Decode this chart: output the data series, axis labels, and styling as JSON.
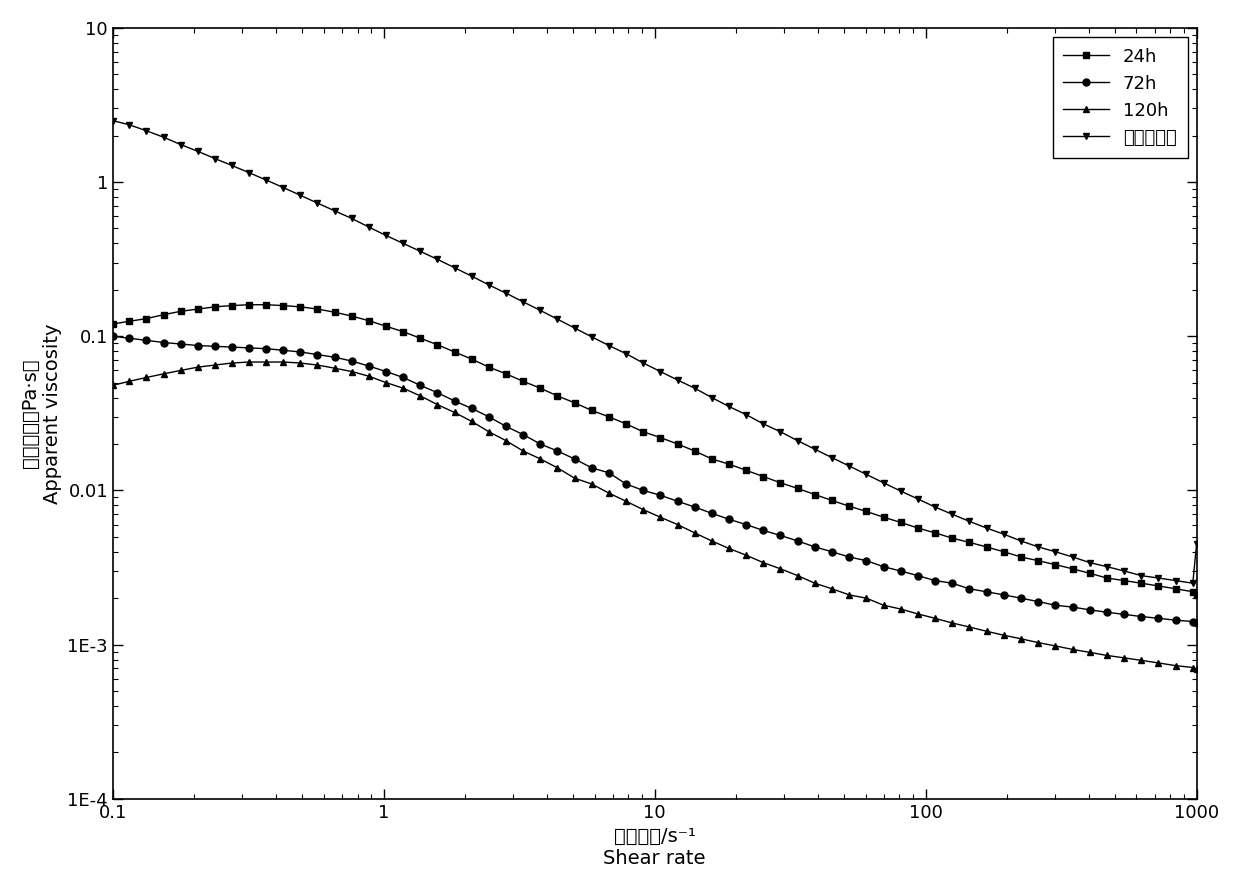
{
  "xlabel_cn": "剪切速率/s⁻¹",
  "xlabel_en": "Shear rate",
  "ylabel_cn": "表观粘度（Pa·s）",
  "ylabel_en": "Apparent viscosity",
  "xmin": 0.1,
  "xmax": 1000,
  "ymin": 0.0001,
  "ymax": 10,
  "series": [
    {
      "label": "24h",
      "marker": "s",
      "x": [
        0.1,
        0.115,
        0.133,
        0.154,
        0.178,
        0.206,
        0.238,
        0.275,
        0.318,
        0.368,
        0.426,
        0.492,
        0.569,
        0.659,
        0.762,
        0.881,
        1.019,
        1.179,
        1.364,
        1.578,
        1.825,
        2.112,
        2.443,
        2.826,
        3.269,
        3.781,
        4.374,
        5.059,
        5.854,
        6.774,
        7.838,
        9.067,
        10.49,
        12.14,
        14.04,
        16.24,
        18.79,
        21.74,
        25.16,
        29.11,
        33.68,
        38.97,
        45.09,
        52.18,
        60.38,
        69.88,
        80.85,
        93.57,
        108.3,
        125.3,
        144.9,
        167.7,
        194.1,
        224.7,
        260.1,
        300.9,
        348.4,
        403.3,
        466.7,
        540.0,
        625.0,
        723.0,
        836.9,
        968.2,
        1000
      ],
      "y": [
        0.12,
        0.125,
        0.13,
        0.138,
        0.145,
        0.15,
        0.155,
        0.158,
        0.16,
        0.16,
        0.158,
        0.155,
        0.15,
        0.143,
        0.135,
        0.126,
        0.116,
        0.107,
        0.097,
        0.088,
        0.079,
        0.071,
        0.063,
        0.057,
        0.051,
        0.046,
        0.041,
        0.037,
        0.033,
        0.03,
        0.027,
        0.024,
        0.022,
        0.02,
        0.018,
        0.016,
        0.0148,
        0.0135,
        0.0123,
        0.0112,
        0.0103,
        0.0094,
        0.0086,
        0.0079,
        0.0073,
        0.0067,
        0.0062,
        0.0057,
        0.0053,
        0.0049,
        0.0046,
        0.0043,
        0.004,
        0.0037,
        0.0035,
        0.0033,
        0.0031,
        0.0029,
        0.0027,
        0.0026,
        0.0025,
        0.0024,
        0.0023,
        0.0022,
        0.0021
      ]
    },
    {
      "label": "72h",
      "marker": "o",
      "x": [
        0.1,
        0.115,
        0.133,
        0.154,
        0.178,
        0.206,
        0.238,
        0.275,
        0.318,
        0.368,
        0.426,
        0.492,
        0.569,
        0.659,
        0.762,
        0.881,
        1.019,
        1.179,
        1.364,
        1.578,
        1.825,
        2.112,
        2.443,
        2.826,
        3.269,
        3.781,
        4.374,
        5.059,
        5.854,
        6.774,
        7.838,
        9.067,
        10.49,
        12.14,
        14.04,
        16.24,
        18.79,
        21.74,
        25.16,
        29.11,
        33.68,
        38.97,
        45.09,
        52.18,
        60.38,
        69.88,
        80.85,
        93.57,
        108.3,
        125.3,
        144.9,
        167.7,
        194.1,
        224.7,
        260.1,
        300.9,
        348.4,
        403.3,
        466.7,
        540.0,
        625.0,
        723.0,
        836.9,
        968.2,
        1000
      ],
      "y": [
        0.1,
        0.097,
        0.094,
        0.091,
        0.089,
        0.087,
        0.086,
        0.085,
        0.084,
        0.083,
        0.081,
        0.079,
        0.076,
        0.073,
        0.069,
        0.064,
        0.059,
        0.054,
        0.048,
        0.043,
        0.038,
        0.034,
        0.03,
        0.026,
        0.023,
        0.02,
        0.018,
        0.016,
        0.014,
        0.013,
        0.011,
        0.01,
        0.0093,
        0.0085,
        0.0078,
        0.0071,
        0.0065,
        0.006,
        0.0055,
        0.0051,
        0.0047,
        0.0043,
        0.004,
        0.0037,
        0.0035,
        0.0032,
        0.003,
        0.0028,
        0.0026,
        0.0025,
        0.0023,
        0.0022,
        0.0021,
        0.002,
        0.0019,
        0.0018,
        0.00175,
        0.00168,
        0.00162,
        0.00157,
        0.00152,
        0.00148,
        0.00144,
        0.00141,
        0.00138
      ]
    },
    {
      "label": "120h",
      "marker": "^",
      "x": [
        0.1,
        0.115,
        0.133,
        0.154,
        0.178,
        0.206,
        0.238,
        0.275,
        0.318,
        0.368,
        0.426,
        0.492,
        0.569,
        0.659,
        0.762,
        0.881,
        1.019,
        1.179,
        1.364,
        1.578,
        1.825,
        2.112,
        2.443,
        2.826,
        3.269,
        3.781,
        4.374,
        5.059,
        5.854,
        6.774,
        7.838,
        9.067,
        10.49,
        12.14,
        14.04,
        16.24,
        18.79,
        21.74,
        25.16,
        29.11,
        33.68,
        38.97,
        45.09,
        52.18,
        60.38,
        69.88,
        80.85,
        93.57,
        108.3,
        125.3,
        144.9,
        167.7,
        194.1,
        224.7,
        260.1,
        300.9,
        348.4,
        403.3,
        466.7,
        540.0,
        625.0,
        723.0,
        836.9,
        968.2,
        1000
      ],
      "y": [
        0.048,
        0.051,
        0.054,
        0.057,
        0.06,
        0.063,
        0.065,
        0.067,
        0.068,
        0.068,
        0.068,
        0.067,
        0.065,
        0.062,
        0.059,
        0.055,
        0.05,
        0.046,
        0.041,
        0.036,
        0.032,
        0.028,
        0.024,
        0.021,
        0.018,
        0.016,
        0.014,
        0.012,
        0.011,
        0.0096,
        0.0085,
        0.0075,
        0.0067,
        0.006,
        0.0053,
        0.0047,
        0.0042,
        0.0038,
        0.0034,
        0.0031,
        0.0028,
        0.0025,
        0.0023,
        0.0021,
        0.002,
        0.0018,
        0.0017,
        0.00158,
        0.00148,
        0.00138,
        0.0013,
        0.00122,
        0.00115,
        0.00109,
        0.00103,
        0.00098,
        0.00093,
        0.00089,
        0.00085,
        0.00082,
        0.00079,
        0.00076,
        0.00073,
        0.00071,
        0.00069
      ]
    },
    {
      "label": "不添加酵母",
      "marker": "v",
      "x": [
        0.1,
        0.115,
        0.133,
        0.154,
        0.178,
        0.206,
        0.238,
        0.275,
        0.318,
        0.368,
        0.426,
        0.492,
        0.569,
        0.659,
        0.762,
        0.881,
        1.019,
        1.179,
        1.364,
        1.578,
        1.825,
        2.112,
        2.443,
        2.826,
        3.269,
        3.781,
        4.374,
        5.059,
        5.854,
        6.774,
        7.838,
        9.067,
        10.49,
        12.14,
        14.04,
        16.24,
        18.79,
        21.74,
        25.16,
        29.11,
        33.68,
        38.97,
        45.09,
        52.18,
        60.38,
        69.88,
        80.85,
        93.57,
        108.3,
        125.3,
        144.9,
        167.7,
        194.1,
        224.7,
        260.1,
        300.9,
        348.4,
        403.3,
        466.7,
        540.0,
        625.0,
        723.0,
        836.9,
        968.2,
        1000
      ],
      "y": [
        2.5,
        2.35,
        2.15,
        1.95,
        1.75,
        1.58,
        1.42,
        1.28,
        1.15,
        1.03,
        0.92,
        0.82,
        0.73,
        0.65,
        0.58,
        0.51,
        0.45,
        0.4,
        0.355,
        0.315,
        0.278,
        0.245,
        0.215,
        0.19,
        0.167,
        0.147,
        0.129,
        0.113,
        0.099,
        0.087,
        0.077,
        0.067,
        0.059,
        0.052,
        0.046,
        0.04,
        0.035,
        0.031,
        0.027,
        0.024,
        0.021,
        0.0185,
        0.0163,
        0.0144,
        0.0127,
        0.0112,
        0.0099,
        0.0088,
        0.0078,
        0.007,
        0.0063,
        0.0057,
        0.0052,
        0.0047,
        0.0043,
        0.004,
        0.0037,
        0.0034,
        0.0032,
        0.003,
        0.0028,
        0.0027,
        0.0026,
        0.0025,
        0.0045
      ]
    }
  ],
  "markersize": 5,
  "linewidth": 1.0,
  "font_size_label": 14,
  "font_size_tick": 13,
  "font_size_legend": 13
}
